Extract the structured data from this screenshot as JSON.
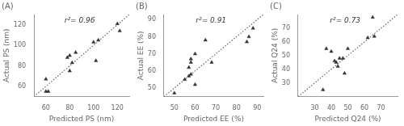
{
  "chart_data": [
    {
      "type": "scatter",
      "title": "(A)",
      "annotations": [
        "r²= 0.96"
      ],
      "xlabel": "Predicted PS (nm)",
      "ylabel": "Actual PS (nm)",
      "xlim": [
        50,
        130
      ],
      "ylim": [
        50,
        130
      ],
      "xticks": [
        60,
        80,
        100,
        120
      ],
      "yticks": [
        60,
        80,
        100,
        120
      ],
      "grid": false,
      "series": [
        {
          "type": "line",
          "line_style": "dotted",
          "color": "#666666",
          "x": [
            50,
            130
          ],
          "values": [
            50,
            130
          ]
        },
        {
          "type": "scatter",
          "marker": "triangle",
          "color": "#333333",
          "x": [
            60,
            60,
            62,
            78,
            80,
            80,
            82,
            85,
            100,
            102,
            104,
            120,
            122
          ],
          "values": [
            67,
            55,
            55,
            88,
            75,
            90,
            83,
            93,
            103,
            85,
            105,
            121,
            114
          ]
        }
      ]
    },
    {
      "type": "scatter",
      "title": "(B)",
      "annotations": [
        "r²= 0.91"
      ],
      "xlabel": "Predicted EE (%)",
      "ylabel": "Actual EE (%)",
      "xlim": [
        45,
        93
      ],
      "ylim": [
        45,
        93
      ],
      "xticks": [
        50,
        60,
        70,
        80,
        90
      ],
      "yticks": [
        50,
        60,
        70,
        80,
        90
      ],
      "grid": false,
      "series": [
        {
          "type": "line",
          "line_style": "dotted",
          "color": "#666666",
          "x": [
            45,
            93
          ],
          "values": [
            45,
            93
          ]
        },
        {
          "type": "scatter",
          "marker": "triangle",
          "color": "#333333",
          "x": [
            50,
            55,
            57,
            57,
            58,
            58,
            58,
            60,
            60,
            65,
            68,
            85,
            86,
            88
          ],
          "values": [
            47,
            55,
            57,
            62,
            67,
            65,
            58,
            52,
            70,
            78,
            65,
            77,
            80,
            85
          ]
        }
      ]
    },
    {
      "type": "scatter",
      "title": "(C)",
      "annotations": [
        "r²= 0.73"
      ],
      "xlabel": "Predicted Q24 (%)",
      "ylabel": "Actual Q24 (%)",
      "xlim": [
        20,
        80
      ],
      "ylim": [
        20,
        80
      ],
      "xticks": [
        30,
        40,
        50,
        60,
        70
      ],
      "yticks": [
        30,
        40,
        50,
        60,
        70
      ],
      "grid": false,
      "series": [
        {
          "type": "line",
          "line_style": "dotted",
          "color": "#666666",
          "x": [
            20,
            80
          ],
          "values": [
            20,
            80
          ]
        },
        {
          "type": "scatter",
          "marker": "triangle",
          "color": "#333333",
          "x": [
            35,
            37,
            40,
            42,
            43,
            44,
            45,
            47,
            48,
            50,
            62,
            65,
            66
          ],
          "values": [
            25,
            55,
            53,
            46,
            45,
            42,
            48,
            48,
            37,
            55,
            63,
            78,
            64
          ]
        }
      ]
    }
  ]
}
